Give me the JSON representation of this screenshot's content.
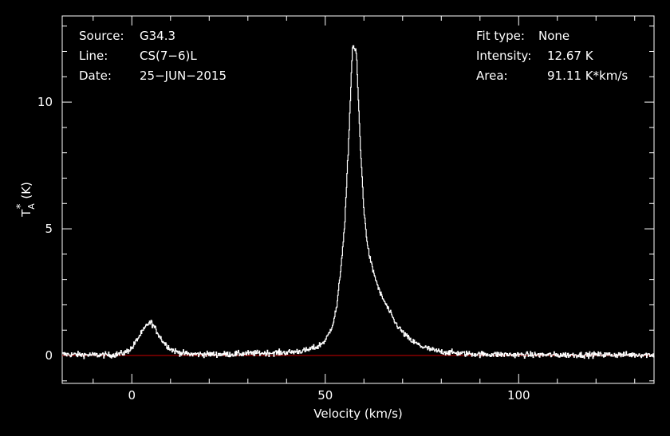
{
  "header_left": {
    "source_label": "Source:",
    "source_value": "G34.3",
    "line_label": "Line:",
    "line_value": "CS(7−6)L",
    "date_label": "Date:",
    "date_value": "25−JUN−2015"
  },
  "header_right": {
    "fit_label": "Fit type:",
    "fit_value": "None",
    "intensity_label": "Intensity:",
    "intensity_value": "12.67 K",
    "area_label": "Area:",
    "area_value": "91.11 K*km/s"
  },
  "colors": {
    "background": "#000000",
    "foreground": "#ffffff",
    "baseline": "#cc0000"
  },
  "chart_data": {
    "type": "line",
    "title": "",
    "xlabel": "Velocity (km/s)",
    "ylabel_main": "T",
    "ylabel_sub": "A",
    "ylabel_sup": "*",
    "ylabel_unit": "(K)",
    "xlim": [
      -18,
      135
    ],
    "ylim": [
      -1.1,
      13.4
    ],
    "x_ticks": [
      0,
      50,
      100
    ],
    "x_tick_labels": [
      "0",
      "50",
      "100"
    ],
    "y_ticks": [
      0,
      5,
      10
    ],
    "y_tick_labels": [
      "0",
      "5",
      "10"
    ],
    "baseline_y": 0,
    "grid": false,
    "series": [
      {
        "x": [
          -18,
          -10,
          -5,
          -2,
          0,
          1,
          2,
          3,
          4,
          5,
          6,
          7,
          8,
          9,
          10,
          12,
          15,
          20,
          25,
          30,
          35,
          40,
          45,
          48,
          50,
          51,
          52,
          53,
          54,
          55,
          56,
          57,
          58,
          59,
          60,
          61,
          62,
          63,
          64,
          65,
          66,
          67,
          68,
          70,
          72,
          75,
          78,
          80,
          85,
          90,
          100,
          110,
          120,
          135
        ],
        "values": [
          0.05,
          0.02,
          0.02,
          0.1,
          0.3,
          0.55,
          0.8,
          1.0,
          1.25,
          1.3,
          1.05,
          0.8,
          0.55,
          0.4,
          0.25,
          0.12,
          0.05,
          0.05,
          0.05,
          0.08,
          0.1,
          0.12,
          0.2,
          0.35,
          0.6,
          0.9,
          1.3,
          2.0,
          3.5,
          5.2,
          8.5,
          12.3,
          11.9,
          8.3,
          5.6,
          4.2,
          3.5,
          3.0,
          2.5,
          2.2,
          1.9,
          1.6,
          1.3,
          0.9,
          0.6,
          0.35,
          0.2,
          0.15,
          0.08,
          0.05,
          0.03,
          0.02,
          0.03,
          0.03
        ]
      }
    ]
  }
}
